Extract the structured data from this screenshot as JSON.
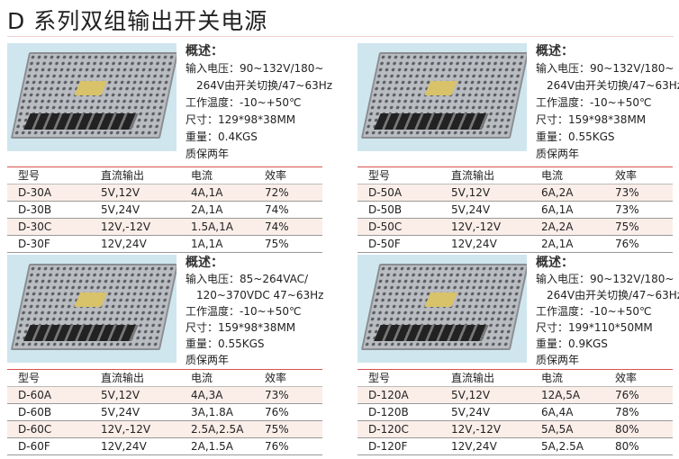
{
  "title": "D 系列双组输出开关电源",
  "headers": [
    "型号",
    "直流输出",
    "电流",
    "效率"
  ],
  "panels": [
    {
      "info": {
        "heading": "概述：",
        "input1": "输入电压：90~132V/180~",
        "input2": "264V由开关切换/47~63Hz",
        "temp": "工作温度：-10~+50℃",
        "size": "尺寸：129*98*38MM",
        "weight": "重量：0.4KGS",
        "warranty": "质保两年"
      },
      "rows": [
        [
          "D-30A",
          "5V,12V",
          "4A,1A",
          "72%"
        ],
        [
          "D-30B",
          "5V,24V",
          "2A,1A",
          "74%"
        ],
        [
          "D-30C",
          "12V,-12V",
          "1.5A,1A",
          "74%"
        ],
        [
          "D-30F",
          "12V,24V",
          "1A,1A",
          "75%"
        ]
      ]
    },
    {
      "info": {
        "heading": "概述：",
        "input1": "输入电压：90~132V/180~",
        "input2": "264V由开关切换/47~63Hz",
        "temp": "工作温度：-10~+50℃",
        "size": "尺寸：159*98*38MM",
        "weight": "重量：0.55KGS",
        "warranty": "质保两年"
      },
      "rows": [
        [
          "D-50A",
          "5V,12V",
          "6A,2A",
          "73%"
        ],
        [
          "D-50B",
          "5V,24V",
          "6A,1A",
          "73%"
        ],
        [
          "D-50C",
          "12V,-12V",
          "2A,2A",
          "75%"
        ],
        [
          "D-50F",
          "12V,24V",
          "2A,1A",
          "76%"
        ]
      ]
    },
    {
      "info": {
        "heading": "概述：",
        "input1": "输入电压：85~264VAC/",
        "input2": "120~370VDC 47~63Hz",
        "temp": "工作温度：-10~+50℃",
        "size": "尺寸：159*98*38MM",
        "weight": "重量：0.55KGS",
        "warranty": "质保两年"
      },
      "rows": [
        [
          "D-60A",
          "5V,12V",
          "4A,3A",
          "73%"
        ],
        [
          "D-60B",
          "5V,24V",
          "3A,1.8A",
          "76%"
        ],
        [
          "D-60C",
          "12V,-12V",
          "2.5A,2.5A",
          "75%"
        ],
        [
          "D-60F",
          "12V,24V",
          "2A,1.5A",
          "76%"
        ]
      ]
    },
    {
      "info": {
        "heading": "概述：",
        "input1": "输入电压：90~132V/180~",
        "input2": "264V由开关切换/47~63Hz",
        "temp": "工作温度：-10~+50℃",
        "size": "尺寸：199*110*50MM",
        "weight": "重量：0.9KGS",
        "warranty": "质保两年"
      },
      "rows": [
        [
          "D-120A",
          "5V,12V",
          "12A,5A",
          "76%"
        ],
        [
          "D-120B",
          "5V,24V",
          "6A,4A",
          "78%"
        ],
        [
          "D-120C",
          "12V,-12V",
          "5A,5A",
          "80%"
        ],
        [
          "D-120F",
          "12V,24V",
          "5A,2.5A",
          "80%"
        ]
      ]
    }
  ]
}
